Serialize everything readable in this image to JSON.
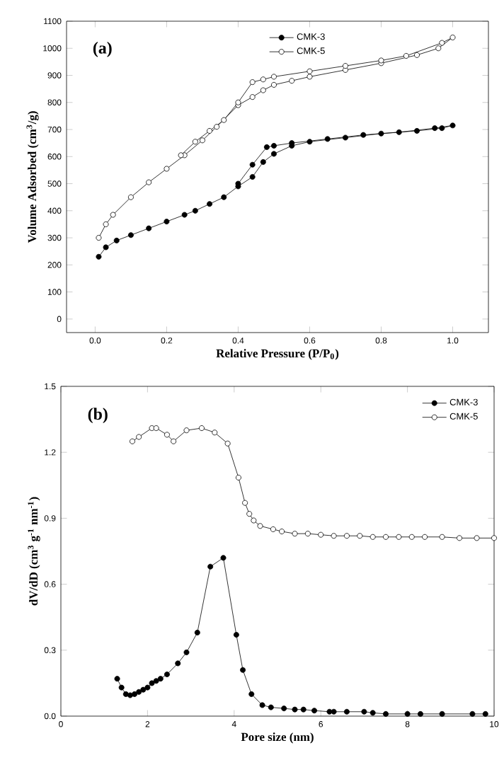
{
  "chart_data": [
    {
      "type": "line",
      "annotations": [
        "(a)"
      ],
      "xlabel": "Relative Pressure (P/P$_{0}$)",
      "ylabel": "Volume Adsorbed (cm$^{3}$/g)",
      "xlim": [
        -0.08,
        1.1
      ],
      "ylim": [
        -50,
        1100
      ],
      "xticks": [
        {
          "value": 0,
          "label": "0.0"
        },
        {
          "value": 0.2,
          "label": "0.2"
        },
        {
          "value": 0.4,
          "label": "0.4"
        },
        {
          "value": 0.6,
          "label": "0.6"
        },
        {
          "value": 0.8,
          "label": "0.8"
        },
        {
          "value": 1,
          "label": "1.0"
        }
      ],
      "yticks": [
        0,
        100,
        200,
        300,
        400,
        500,
        600,
        700,
        800,
        900,
        1000,
        1100
      ],
      "legend": "top",
      "marker": "circle",
      "line_style": "solid",
      "grid": false,
      "series": [
        {
          "name": "CMK-3",
          "color": "#000000",
          "x": [
            0.01,
            0.03,
            0.06,
            0.1,
            0.15,
            0.2,
            0.25,
            0.28,
            0.32,
            0.36,
            0.4,
            0.44,
            0.47,
            0.5,
            0.55,
            0.6,
            0.7,
            0.8,
            0.9,
            0.97,
            1.0,
            0.95,
            0.85,
            0.75,
            0.65,
            0.55,
            0.5,
            0.48,
            0.44,
            0.4
          ],
          "values": [
            230,
            265,
            290,
            310,
            335,
            360,
            385,
            400,
            425,
            450,
            490,
            525,
            580,
            610,
            640,
            655,
            670,
            685,
            695,
            705,
            715,
            705,
            690,
            680,
            665,
            650,
            640,
            635,
            570,
            500
          ]
        },
        {
          "name": "CMK-5",
          "color": "#ffffff",
          "x": [
            0.01,
            0.03,
            0.05,
            0.1,
            0.15,
            0.2,
            0.25,
            0.3,
            0.34,
            0.4,
            0.44,
            0.47,
            0.5,
            0.55,
            0.6,
            0.7,
            0.8,
            0.9,
            0.96,
            1.0,
            0.97,
            0.87,
            0.8,
            0.7,
            0.6,
            0.5,
            0.47,
            0.44,
            0.4,
            0.36,
            0.32,
            0.28,
            0.24
          ],
          "values": [
            300,
            350,
            385,
            450,
            505,
            555,
            605,
            660,
            710,
            790,
            820,
            845,
            865,
            880,
            895,
            920,
            945,
            975,
            1000,
            1040,
            1020,
            972,
            955,
            935,
            915,
            895,
            885,
            875,
            800,
            735,
            695,
            655,
            605
          ]
        }
      ]
    },
    {
      "type": "line",
      "annotations": [
        "(b)"
      ],
      "xlabel": "Pore size (nm)",
      "ylabel": "dV/dD (cm$^{3}$ g$^{-1}$ nm$^{-1}$)",
      "xlim": [
        0,
        10
      ],
      "ylim": [
        0,
        1.5
      ],
      "xticks": [
        0,
        2,
        4,
        6,
        8,
        10
      ],
      "yticks": [
        {
          "value": 0,
          "label": "0.0"
        },
        {
          "value": 0.3,
          "label": "0.3"
        },
        {
          "value": 0.6,
          "label": "0.6"
        },
        {
          "value": 0.9,
          "label": "0.9"
        },
        {
          "value": 1.2,
          "label": "1.2"
        },
        {
          "value": 1.5,
          "label": "1.5"
        }
      ],
      "legend": "top right",
      "marker": "circle",
      "line_style": "solid",
      "grid": false,
      "series": [
        {
          "name": "CMK-3",
          "color": "#000000",
          "x": [
            1.3,
            1.4,
            1.5,
            1.6,
            1.7,
            1.8,
            1.9,
            2.0,
            2.1,
            2.2,
            2.3,
            2.45,
            2.7,
            2.9,
            3.15,
            3.45,
            3.75,
            4.05,
            4.2,
            4.4,
            4.65,
            4.85,
            5.15,
            5.4,
            5.6,
            5.85,
            6.2,
            6.3,
            6.6,
            7.0,
            7.2,
            7.5,
            8.0,
            8.3,
            8.8,
            9.5,
            9.8
          ],
          "values": [
            0.17,
            0.13,
            0.1,
            0.095,
            0.1,
            0.11,
            0.12,
            0.13,
            0.15,
            0.16,
            0.17,
            0.19,
            0.24,
            0.29,
            0.38,
            0.68,
            0.72,
            0.37,
            0.21,
            0.1,
            0.05,
            0.04,
            0.035,
            0.03,
            0.03,
            0.025,
            0.02,
            0.02,
            0.02,
            0.02,
            0.015,
            0.01,
            0.01,
            0.01,
            0.01,
            0.01,
            0.01
          ]
        },
        {
          "name": "CMK-5",
          "color": "#ffffff",
          "x": [
            1.65,
            1.8,
            2.1,
            2.2,
            2.45,
            2.6,
            2.9,
            3.25,
            3.55,
            3.85,
            4.1,
            4.25,
            4.35,
            4.45,
            4.6,
            4.9,
            5.1,
            5.4,
            5.7,
            6.0,
            6.3,
            6.6,
            6.9,
            7.2,
            7.5,
            7.8,
            8.1,
            8.4,
            8.8,
            9.2,
            9.6,
            10.0
          ],
          "values": [
            1.25,
            1.27,
            1.31,
            1.31,
            1.28,
            1.25,
            1.3,
            1.31,
            1.29,
            1.24,
            1.085,
            0.97,
            0.92,
            0.89,
            0.865,
            0.85,
            0.84,
            0.83,
            0.83,
            0.825,
            0.82,
            0.82,
            0.82,
            0.815,
            0.815,
            0.815,
            0.815,
            0.815,
            0.815,
            0.81,
            0.81,
            0.81
          ]
        }
      ]
    }
  ]
}
